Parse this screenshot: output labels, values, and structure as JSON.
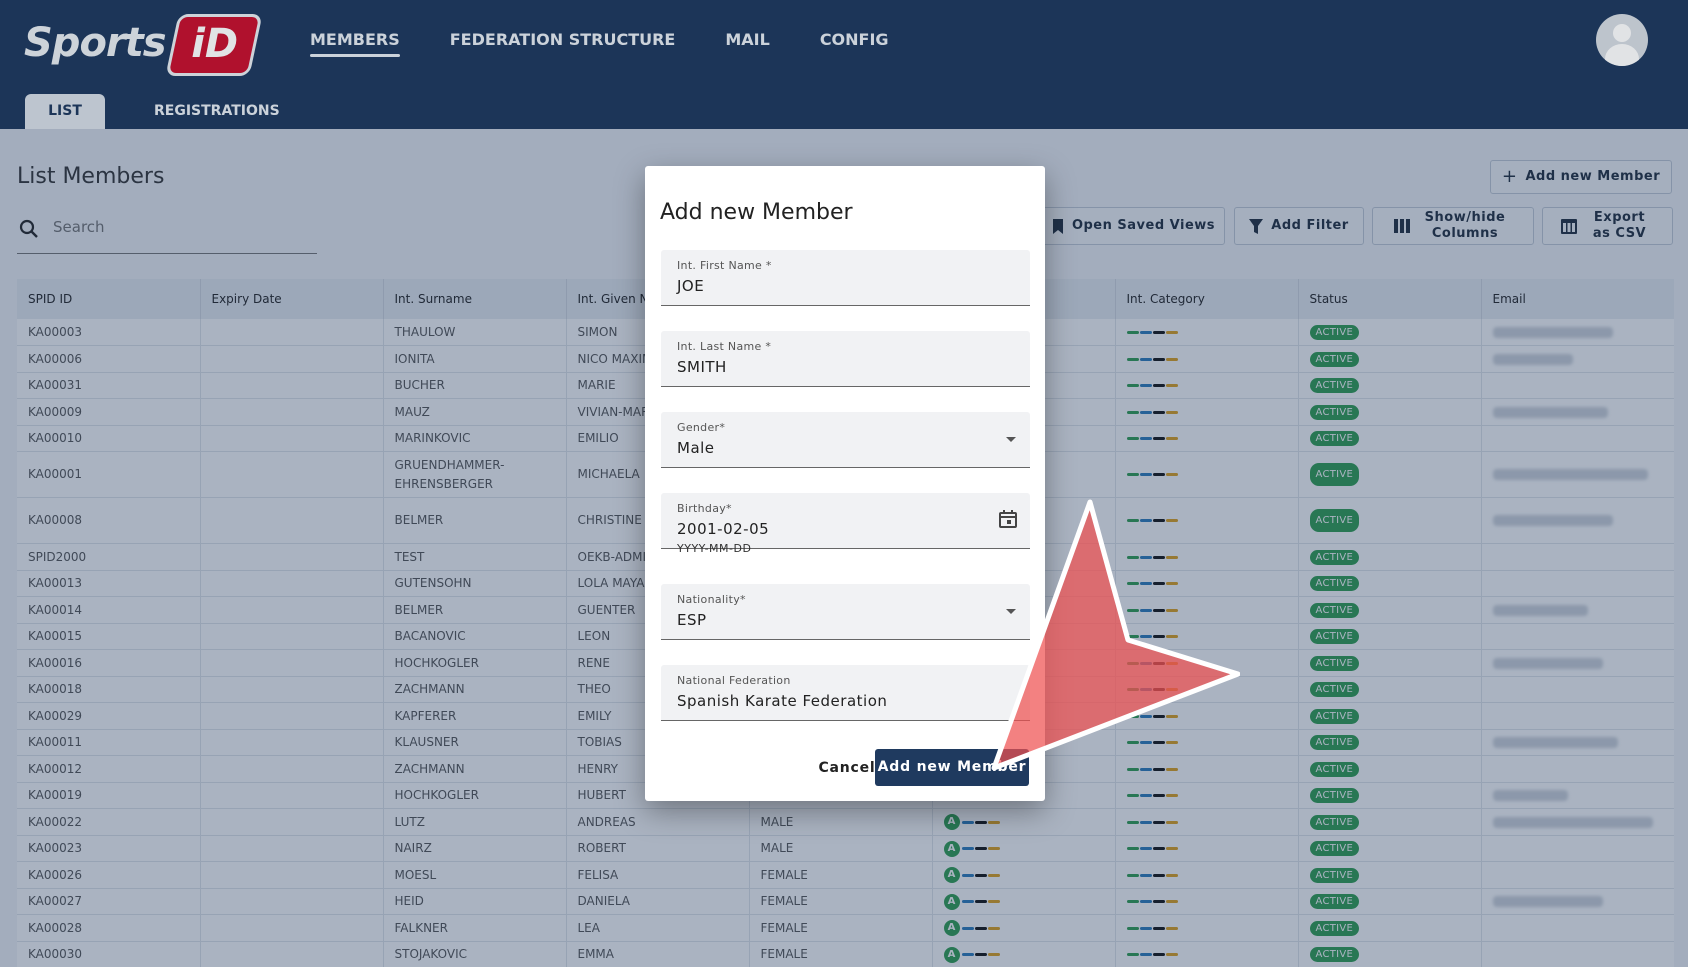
{
  "header": {
    "logo_text": "Sports",
    "logo_badge": "iD",
    "nav": [
      "MEMBERS",
      "FEDERATION STRUCTURE",
      "MAIL",
      "CONFIG"
    ]
  },
  "subtabs": {
    "list": "LIST",
    "registrations": "REGISTRATIONS"
  },
  "page": {
    "title": "List Members",
    "search_placeholder": "Search",
    "add_member": "Add new Member",
    "open_saved_views": "Open Saved Views",
    "add_filter": "Add Filter",
    "show_hide_columns": "Show/hide Columns",
    "export_csv": "Export as CSV"
  },
  "table": {
    "columns": [
      "SPID ID",
      "Expiry Date",
      "Int. Surname",
      "Int. Given Na",
      "",
      "",
      "Int. Category",
      "Status",
      "Email"
    ],
    "status_label": "ACTIVE",
    "rows": [
      {
        "id": "KA00003",
        "surname": "THAULOW",
        "given": "SIMON",
        "gender": "",
        "email": "w120"
      },
      {
        "id": "KA00006",
        "surname": "IONITA",
        "given": "NICO MAXIM",
        "gender": "",
        "email": "w80"
      },
      {
        "id": "KA00031",
        "surname": "BUCHER",
        "given": "MARIE",
        "gender": "",
        "email": ""
      },
      {
        "id": "KA00009",
        "surname": "MAUZ",
        "given": "VIVIAN-MAR",
        "gender": "",
        "email": "w115"
      },
      {
        "id": "KA00010",
        "surname": "MARINKOVIC",
        "given": "EMILIO",
        "gender": "",
        "email": ""
      },
      {
        "id": "KA00001",
        "surname": "GRUENDHAMMER-EHRENSBERGER",
        "given": "MICHAELA",
        "gender": "",
        "email": "w155",
        "tall": true
      },
      {
        "id": "KA00008",
        "surname": "BELMER",
        "given": "CHRISTINE",
        "gender": "",
        "email": "w120",
        "tall": true
      },
      {
        "id": "SPID2000",
        "surname": "TEST",
        "given": "OEKB-ADMIN",
        "gender": "",
        "email": ""
      },
      {
        "id": "KA00013",
        "surname": "GUTENSOHN",
        "given": "LOLA MAYA",
        "gender": "",
        "email": ""
      },
      {
        "id": "KA00014",
        "surname": "BELMER",
        "given": "GUENTER",
        "gender": "",
        "email": "w95"
      },
      {
        "id": "KA00015",
        "surname": "BACANOVIC",
        "given": "LEON",
        "gender": "",
        "email": ""
      },
      {
        "id": "KA00016",
        "surname": "HOCHKOGLER",
        "given": "RENE",
        "gender": "",
        "email": "w110"
      },
      {
        "id": "KA00018",
        "surname": "ZACHMANN",
        "given": "THEO",
        "gender": "",
        "email": ""
      },
      {
        "id": "KA00029",
        "surname": "KAPFERER",
        "given": "EMILY",
        "gender": "",
        "email": ""
      },
      {
        "id": "KA00011",
        "surname": "KLAUSNER",
        "given": "TOBIAS",
        "gender": "",
        "email": "w125"
      },
      {
        "id": "KA00012",
        "surname": "ZACHMANN",
        "given": "HENRY",
        "gender": "",
        "email": ""
      },
      {
        "id": "KA00019",
        "surname": "HOCHKOGLER",
        "given": "HUBERT",
        "gender": "",
        "email": "w75"
      },
      {
        "id": "KA00022",
        "surname": "LUTZ",
        "given": "ANDREAS",
        "gender": "MALE",
        "email": "w160"
      },
      {
        "id": "KA00023",
        "surname": "NAIRZ",
        "given": "ROBERT",
        "gender": "MALE",
        "email": ""
      },
      {
        "id": "KA00026",
        "surname": "MOESL",
        "given": "FELISA",
        "gender": "FEMALE",
        "email": ""
      },
      {
        "id": "KA00027",
        "surname": "HEID",
        "given": "DANIELA",
        "gender": "FEMALE",
        "email": "w110"
      },
      {
        "id": "KA00028",
        "surname": "FALKNER",
        "given": "LEA",
        "gender": "FEMALE",
        "email": ""
      },
      {
        "id": "KA00030",
        "surname": "STOJAKOVIC",
        "given": "EMMA",
        "gender": "FEMALE",
        "email": ""
      }
    ]
  },
  "dialog": {
    "title": "Add new Member",
    "first_name_label": "Int. First Name *",
    "first_name_value": "JOE",
    "last_name_label": "Int. Last Name *",
    "last_name_value": "SMITH",
    "gender_label": "Gender*",
    "gender_value": "Male",
    "birthday_label": "Birthday*",
    "birthday_value": "2001-02-05",
    "birthday_hint": "YYYY-MM-DD",
    "nationality_label": "Nationality*",
    "nationality_value": "ESP",
    "federation_label": "National Federation",
    "federation_value": "Spanish Karate Federation",
    "cancel": "Cancel",
    "submit": "Add new Member"
  },
  "colors": {
    "brand": "#1f3a5f",
    "accent_red": "#c8102e",
    "status_green": "#2e9e4f"
  }
}
